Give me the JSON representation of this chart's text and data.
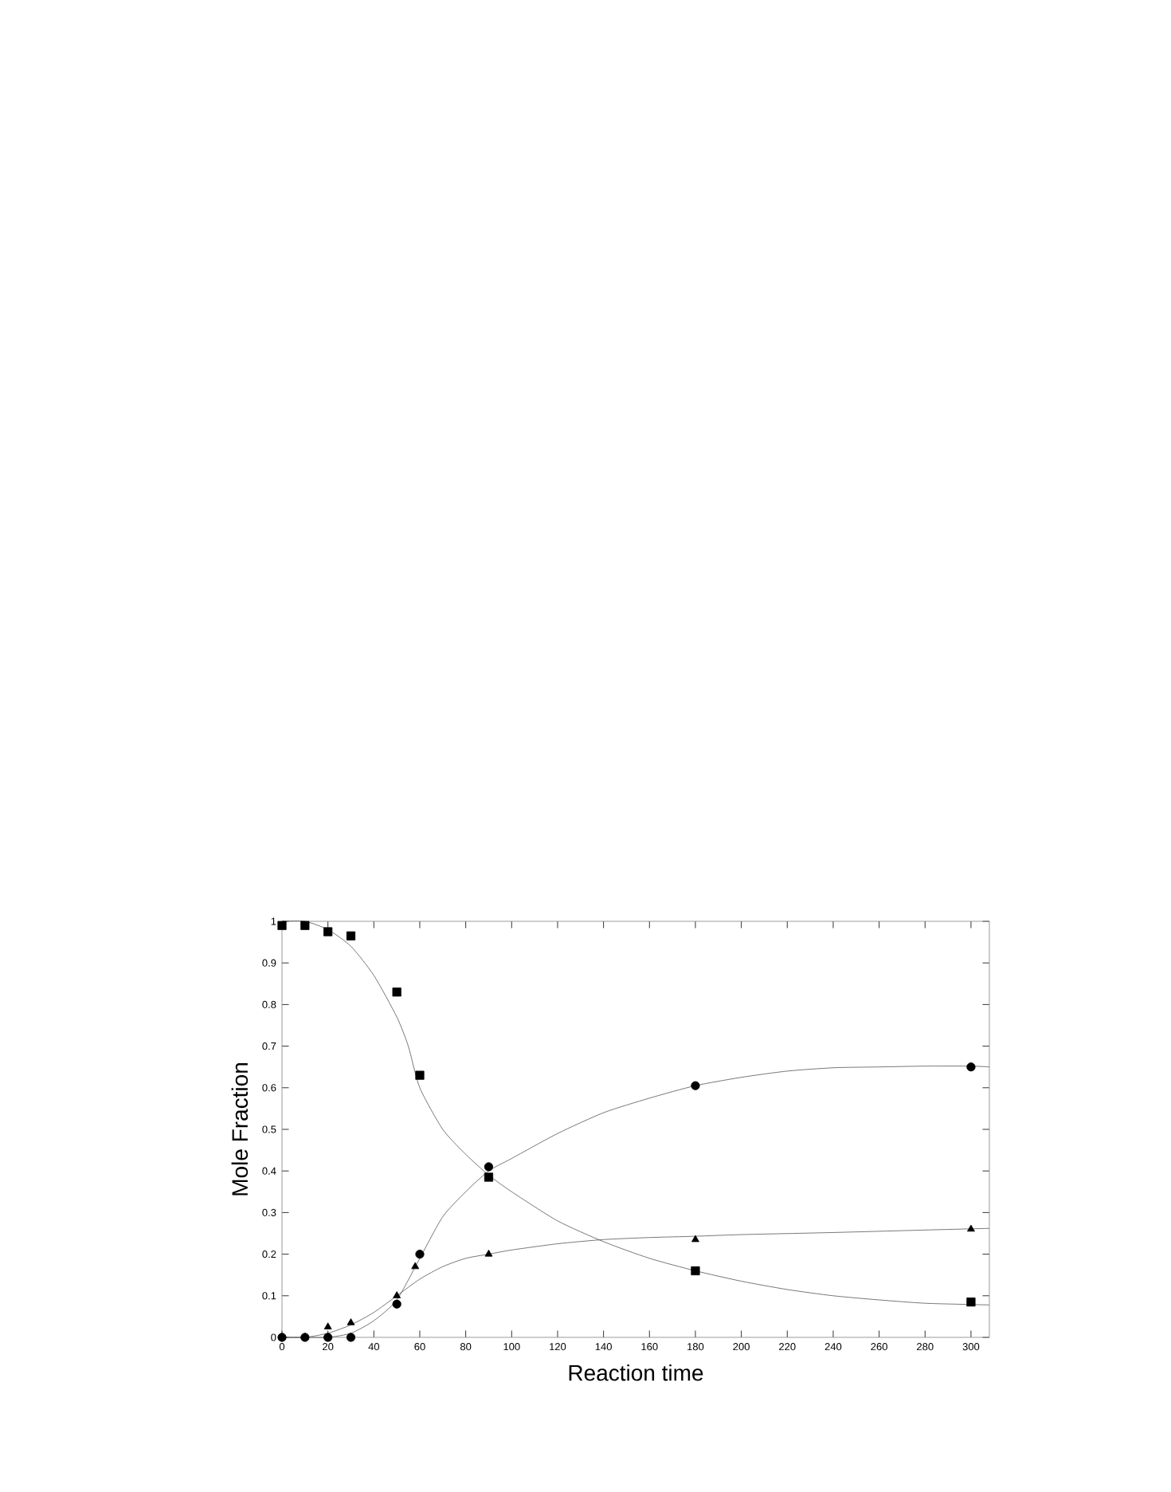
{
  "chart_data": {
    "type": "scatter",
    "xlabel": "Reaction time",
    "ylabel": "Mole Fraction",
    "xlim": [
      0,
      308
    ],
    "ylim": [
      0,
      1
    ],
    "xticks": [
      0,
      20,
      40,
      60,
      80,
      100,
      120,
      140,
      160,
      180,
      200,
      220,
      240,
      260,
      280,
      300
    ],
    "yticks": [
      0,
      0.1,
      0.2,
      0.3,
      0.4,
      0.5,
      0.6,
      0.7,
      0.8,
      0.9,
      1
    ],
    "grid": false,
    "series": [
      {
        "marker": "square",
        "color": "#000000",
        "x": [
          0,
          10,
          20,
          30,
          50,
          60,
          90,
          180,
          300
        ],
        "values": [
          0.99,
          0.99,
          0.975,
          0.965,
          0.83,
          0.63,
          0.385,
          0.16,
          0.085
        ]
      },
      {
        "marker": "circle",
        "color": "#000000",
        "x": [
          0,
          10,
          20,
          30,
          50,
          60,
          90,
          180,
          300
        ],
        "values": [
          0,
          0,
          0,
          0,
          0.08,
          0.2,
          0.41,
          0.605,
          0.65
        ]
      },
      {
        "marker": "triangle",
        "color": "#000000",
        "x": [
          0,
          10,
          20,
          30,
          50,
          58,
          90,
          180,
          300
        ],
        "values": [
          0,
          0,
          0.025,
          0.035,
          0.1,
          0.17,
          0.2,
          0.235,
          0.26
        ]
      },
      {
        "type": "line",
        "marker": "none",
        "line_style": "solid",
        "color": "#555555",
        "x": [
          0,
          10,
          20,
          30,
          40,
          50,
          55,
          60,
          70,
          80,
          90,
          100,
          120,
          140,
          160,
          180,
          200,
          220,
          240,
          260,
          280,
          300,
          308
        ],
        "values": [
          1.0,
          1.0,
          0.98,
          0.94,
          0.87,
          0.77,
          0.7,
          0.6,
          0.5,
          0.44,
          0.39,
          0.35,
          0.28,
          0.23,
          0.19,
          0.16,
          0.135,
          0.115,
          0.1,
          0.09,
          0.082,
          0.079,
          0.078
        ]
      },
      {
        "type": "line",
        "marker": "none",
        "line_style": "solid",
        "color": "#555555",
        "x": [
          0,
          10,
          20,
          30,
          40,
          50,
          60,
          70,
          80,
          90,
          100,
          120,
          140,
          160,
          180,
          200,
          220,
          240,
          260,
          280,
          300,
          308
        ],
        "values": [
          0,
          0,
          0,
          0.01,
          0.04,
          0.09,
          0.19,
          0.29,
          0.35,
          0.4,
          0.43,
          0.49,
          0.54,
          0.575,
          0.605,
          0.625,
          0.64,
          0.648,
          0.65,
          0.652,
          0.652,
          0.65
        ]
      },
      {
        "type": "line",
        "marker": "none",
        "line_style": "solid",
        "color": "#555555",
        "x": [
          0,
          10,
          20,
          30,
          40,
          50,
          60,
          70,
          80,
          90,
          100,
          120,
          140,
          160,
          180,
          200,
          240,
          280,
          308
        ],
        "values": [
          0,
          0,
          0.01,
          0.03,
          0.06,
          0.1,
          0.14,
          0.17,
          0.19,
          0.2,
          0.21,
          0.225,
          0.235,
          0.24,
          0.243,
          0.247,
          0.252,
          0.258,
          0.262
        ]
      }
    ]
  }
}
